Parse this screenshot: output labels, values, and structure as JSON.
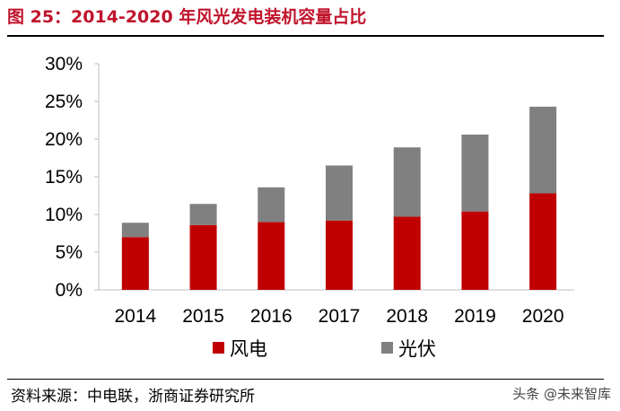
{
  "header": {
    "title": "图 25：2014-2020 年风光发电装机容量占比"
  },
  "footer": {
    "source": "资料来源：中电联，浙商证券研究所",
    "watermark": "头条 @未来智库"
  },
  "colors": {
    "title": "#c0142c",
    "wind": "#c00000",
    "solar": "#808080"
  },
  "chart_data": {
    "type": "bar",
    "stacked": true,
    "categories": [
      "2014",
      "2015",
      "2016",
      "2017",
      "2018",
      "2019",
      "2020"
    ],
    "series": [
      {
        "name": "风电",
        "values": [
          7.0,
          8.6,
          9.0,
          9.2,
          9.7,
          10.4,
          12.8
        ]
      },
      {
        "name": "光伏",
        "values": [
          1.9,
          2.8,
          4.6,
          7.3,
          9.2,
          10.2,
          11.5
        ]
      }
    ],
    "ylim": [
      0,
      30
    ],
    "yticks": [
      "0%",
      "5%",
      "10%",
      "15%",
      "20%",
      "25%",
      "30%"
    ],
    "grid": false,
    "legend_position": "bottom"
  }
}
